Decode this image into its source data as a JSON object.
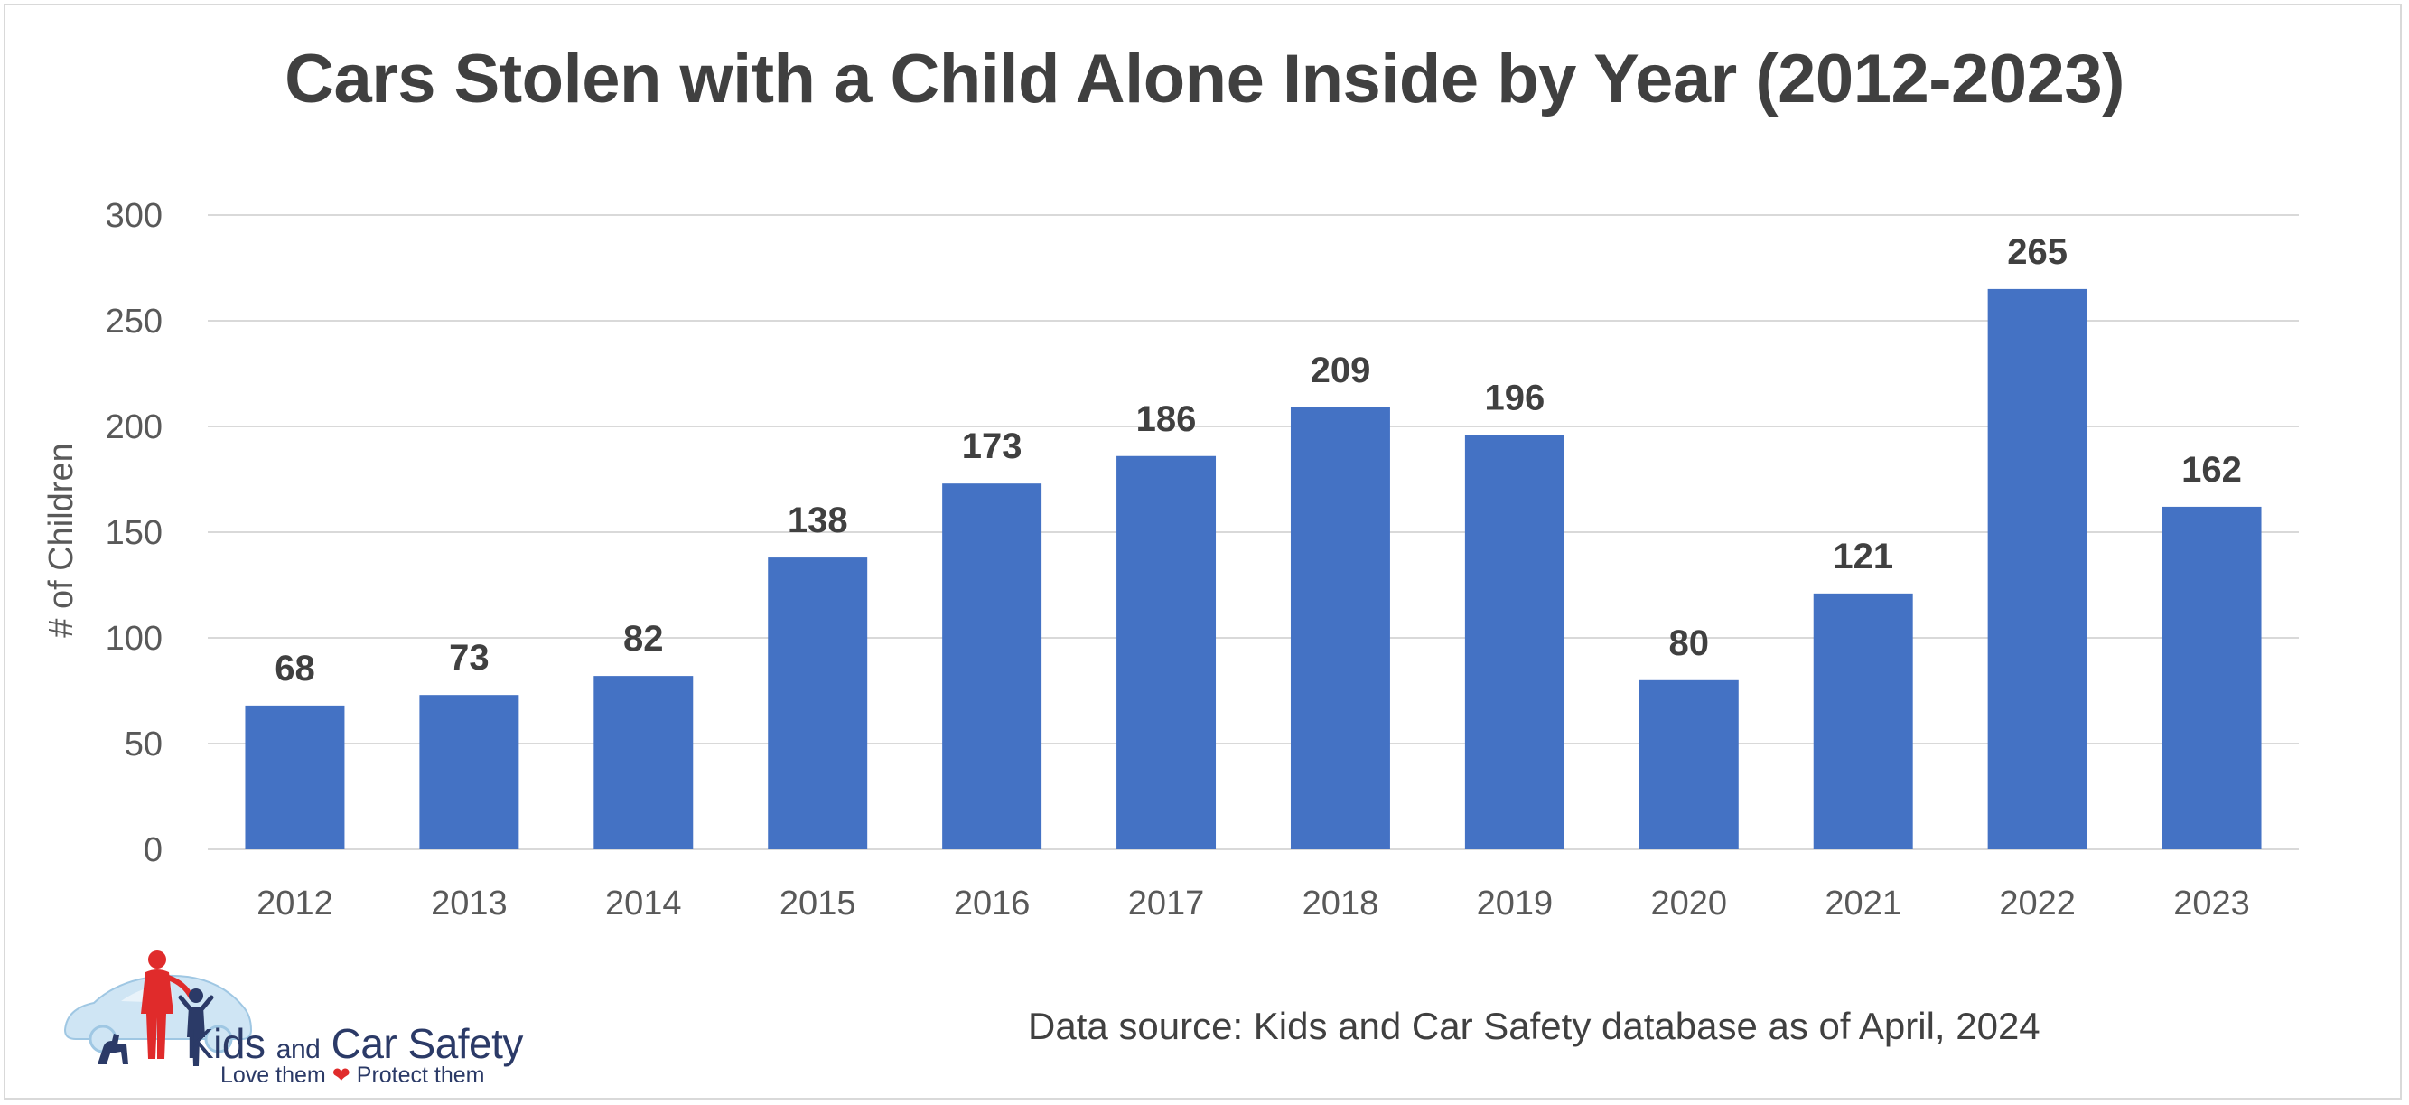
{
  "chart_data": {
    "type": "bar",
    "title": "Cars Stolen with a Child Alone Inside by Year (2012-2023)",
    "ylabel": "# of Children",
    "xlabel": "",
    "categories": [
      "2012",
      "2013",
      "2014",
      "2015",
      "2016",
      "2017",
      "2018",
      "2019",
      "2020",
      "2021",
      "2022",
      "2023"
    ],
    "values": [
      68,
      73,
      82,
      138,
      173,
      186,
      209,
      196,
      80,
      121,
      265,
      162
    ],
    "ylim": [
      0,
      300
    ],
    "yticks": [
      0,
      50,
      100,
      150,
      200,
      250,
      300
    ],
    "grid": true,
    "legend": "none",
    "bar_color": "#4472C4",
    "gridline_color": "#D9D9D9"
  },
  "footer": {
    "source": "Data source: Kids and Car Safety database as of April, 2024"
  },
  "logo": {
    "name_part1": "Kids",
    "name_part2": "and",
    "name_part3": "Car Safety",
    "tagline_left": "Love them",
    "tagline_right": "Protect them",
    "heart_icon": "heart-icon"
  }
}
